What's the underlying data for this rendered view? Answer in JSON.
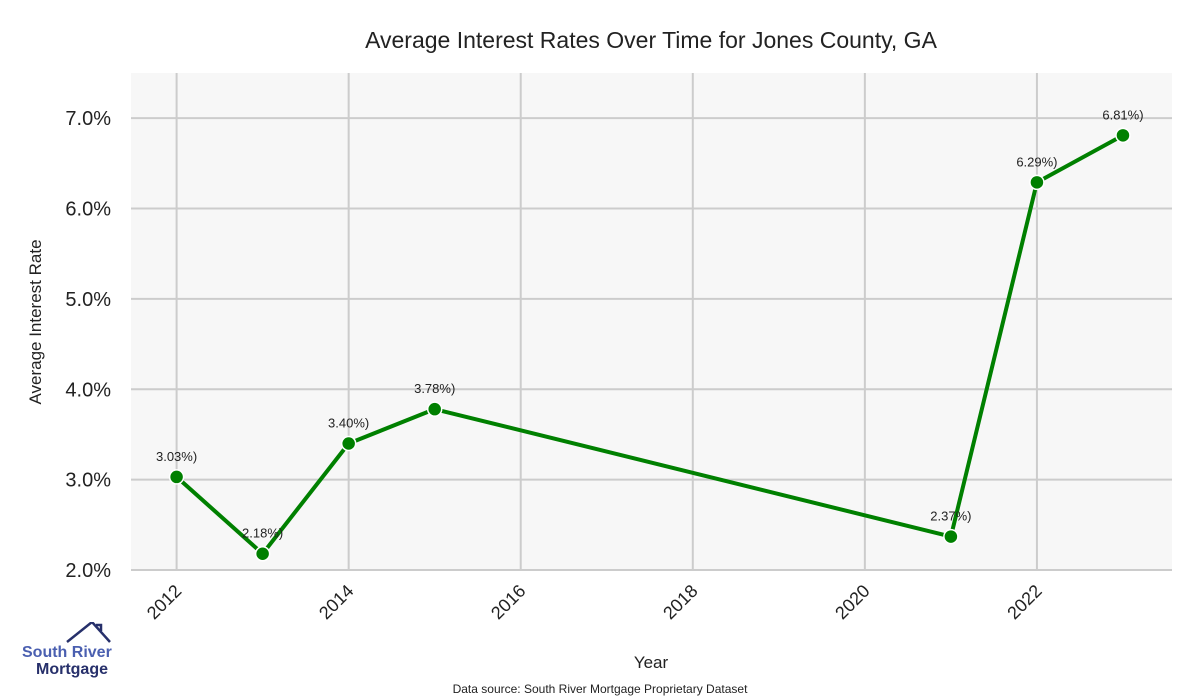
{
  "chart_data": {
    "type": "line",
    "title": "Average Interest Rates Over Time for Jones County, GA",
    "xlabel": "Year",
    "ylabel": "Average Interest Rate",
    "x": [
      2012,
      2013,
      2014,
      2015,
      2021,
      2022,
      2023
    ],
    "series": [
      {
        "name": "Average Interest Rate",
        "values": [
          3.03,
          2.18,
          3.4,
          3.78,
          2.37,
          6.29,
          6.81
        ],
        "color": "#008000"
      }
    ],
    "data_labels": [
      "3.03%)",
      "2.18%)",
      "3.40%)",
      "3.78%)",
      "2.37%)",
      "6.29%)",
      "6.81%)"
    ],
    "xticks": [
      2012,
      2014,
      2016,
      2018,
      2020,
      2022
    ],
    "xtick_labels": [
      "2012",
      "2014",
      "2016",
      "2018",
      "2020",
      "2022"
    ],
    "yticks": [
      2,
      3,
      4,
      5,
      6,
      7
    ],
    "ytick_labels": [
      "2.0%",
      "3.0%",
      "4.0%",
      "5.0%",
      "6.0%",
      "7.0%"
    ],
    "xlim": [
      2011.47,
      2023.57
    ],
    "ylim": [
      2.0,
      7.5
    ],
    "grid": true,
    "background": "#f7f7f7"
  },
  "footer": {
    "source": "Data source: South River Mortgage Proprietary Dataset"
  },
  "logo": {
    "line1": "South River",
    "line2": "Mortgage"
  }
}
